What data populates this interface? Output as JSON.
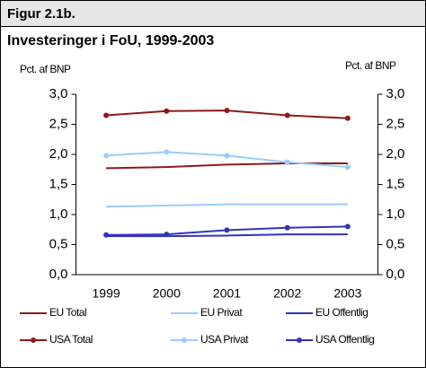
{
  "chart_data": {
    "type": "line",
    "header": "Figur 2.1b.",
    "title": "Investeringer i FoU, 1999-2003",
    "y_label": "Pct. af BNP",
    "y2_label": "Pct. af BNP",
    "categories": [
      "1999",
      "2000",
      "2001",
      "2002",
      "2003"
    ],
    "series": [
      {
        "name": "EU Total",
        "color": "#8b1a1a",
        "marker": false,
        "values": [
          1.77,
          1.79,
          1.83,
          1.85,
          1.85
        ]
      },
      {
        "name": "EU Privat",
        "color": "#99ccff",
        "marker": false,
        "values": [
          1.13,
          1.15,
          1.17,
          1.17,
          1.17
        ]
      },
      {
        "name": "EU Offentlig",
        "color": "#3333bb",
        "marker": false,
        "values": [
          0.64,
          0.64,
          0.65,
          0.67,
          0.67
        ]
      },
      {
        "name": "USA Total",
        "color": "#8b1a1a",
        "marker": true,
        "values": [
          2.65,
          2.72,
          2.73,
          2.65,
          2.6
        ]
      },
      {
        "name": "USA Privat",
        "color": "#99ccff",
        "marker": true,
        "values": [
          1.98,
          2.04,
          1.98,
          1.87,
          1.79
        ]
      },
      {
        "name": "USA Offentlig",
        "color": "#3333bb",
        "marker": true,
        "values": [
          0.66,
          0.67,
          0.74,
          0.78,
          0.8
        ]
      }
    ],
    "ylim": [
      0,
      3
    ],
    "yticks": [
      {
        "value": 0,
        "label": "0,0"
      },
      {
        "value": 0.5,
        "label": "0,5"
      },
      {
        "value": 1,
        "label": "1,0"
      },
      {
        "value": 1.5,
        "label": "1,5"
      },
      {
        "value": 2,
        "label": "2,0"
      },
      {
        "value": 2.5,
        "label": "2,5"
      },
      {
        "value": 3,
        "label": "3,0"
      }
    ],
    "y2lim": [
      0,
      3
    ],
    "y2ticks": [
      {
        "value": 0,
        "label": "0,0"
      },
      {
        "value": 0.5,
        "label": "0,5"
      },
      {
        "value": 1,
        "label": "1,0"
      },
      {
        "value": 1.5,
        "label": "1,5"
      },
      {
        "value": 2,
        "label": "2,0"
      },
      {
        "value": 2.5,
        "label": "2,5"
      },
      {
        "value": 3,
        "label": "3,0"
      }
    ],
    "grid": false
  }
}
